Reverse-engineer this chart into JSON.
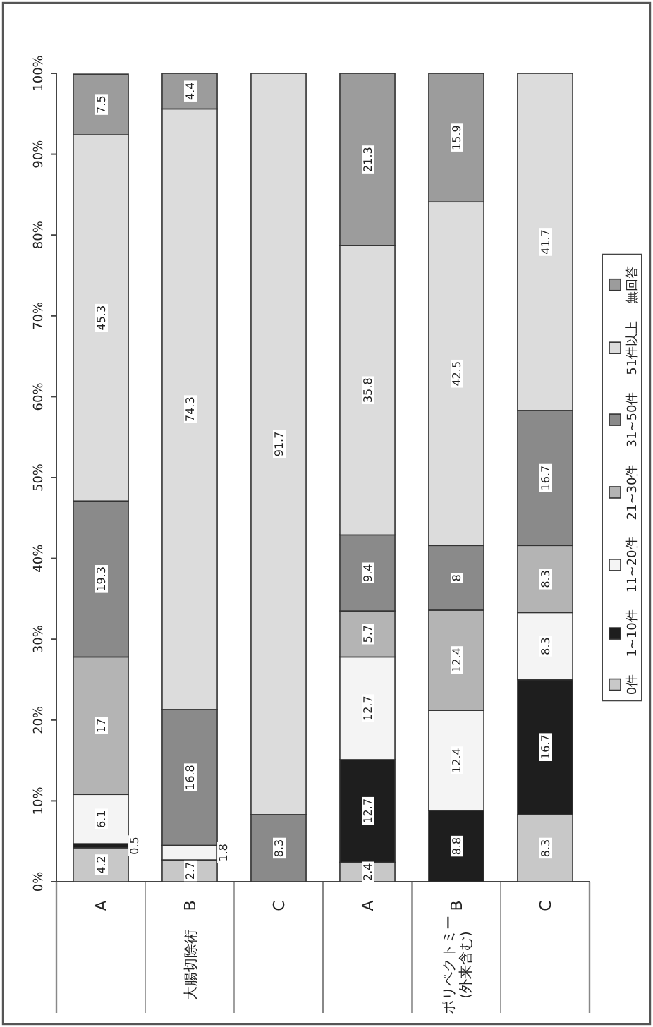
{
  "chart_data": {
    "type": "bar",
    "stacked": true,
    "data_labels": true,
    "legend": "right",
    "categories": [
      "A",
      "B",
      "C",
      "A",
      "B",
      "C"
    ],
    "annotations": [
      "大腸切除術",
      "ポリペクトミー\n(外来含む)"
    ],
    "ylim": [
      0,
      100
    ],
    "yticks": [
      {
        "value": 0,
        "label": "0%"
      },
      {
        "value": 10,
        "label": "10%"
      },
      {
        "value": 20,
        "label": "20%"
      },
      {
        "value": 30,
        "label": "30%"
      },
      {
        "value": 40,
        "label": "40%"
      },
      {
        "value": 50,
        "label": "50%"
      },
      {
        "value": 60,
        "label": "60%"
      },
      {
        "value": 70,
        "label": "70%"
      },
      {
        "value": 80,
        "label": "80%"
      },
      {
        "value": 90,
        "label": "90%"
      },
      {
        "value": 100,
        "label": "100%"
      }
    ],
    "series": [
      {
        "name": "0件",
        "color": "#c8c8c8",
        "values": [
          4.2,
          2.7,
          null,
          2.4,
          null,
          8.3
        ]
      },
      {
        "name": "1~10件",
        "color": "#1e1e1e",
        "values": [
          0.5,
          null,
          null,
          12.7,
          8.8,
          16.7
        ]
      },
      {
        "name": "11~20件",
        "color": "#f4f4f4",
        "values": [
          6.1,
          1.8,
          null,
          12.7,
          12.4,
          8.3
        ]
      },
      {
        "name": "21~30件",
        "color": "#b4b4b4",
        "values": [
          17.0,
          null,
          null,
          5.7,
          12.4,
          8.3
        ]
      },
      {
        "name": "31~50件",
        "color": "#8a8a8a",
        "values": [
          19.3,
          16.8,
          8.3,
          9.4,
          8.0,
          16.7
        ]
      },
      {
        "name": "51件以上",
        "color": "#dcdcdc",
        "values": [
          45.3,
          74.3,
          91.7,
          35.8,
          42.5,
          41.7
        ]
      },
      {
        "name": "無回答",
        "color": "#9c9c9c",
        "values": [
          7.5,
          4.4,
          null,
          21.3,
          15.9,
          null
        ]
      }
    ]
  }
}
